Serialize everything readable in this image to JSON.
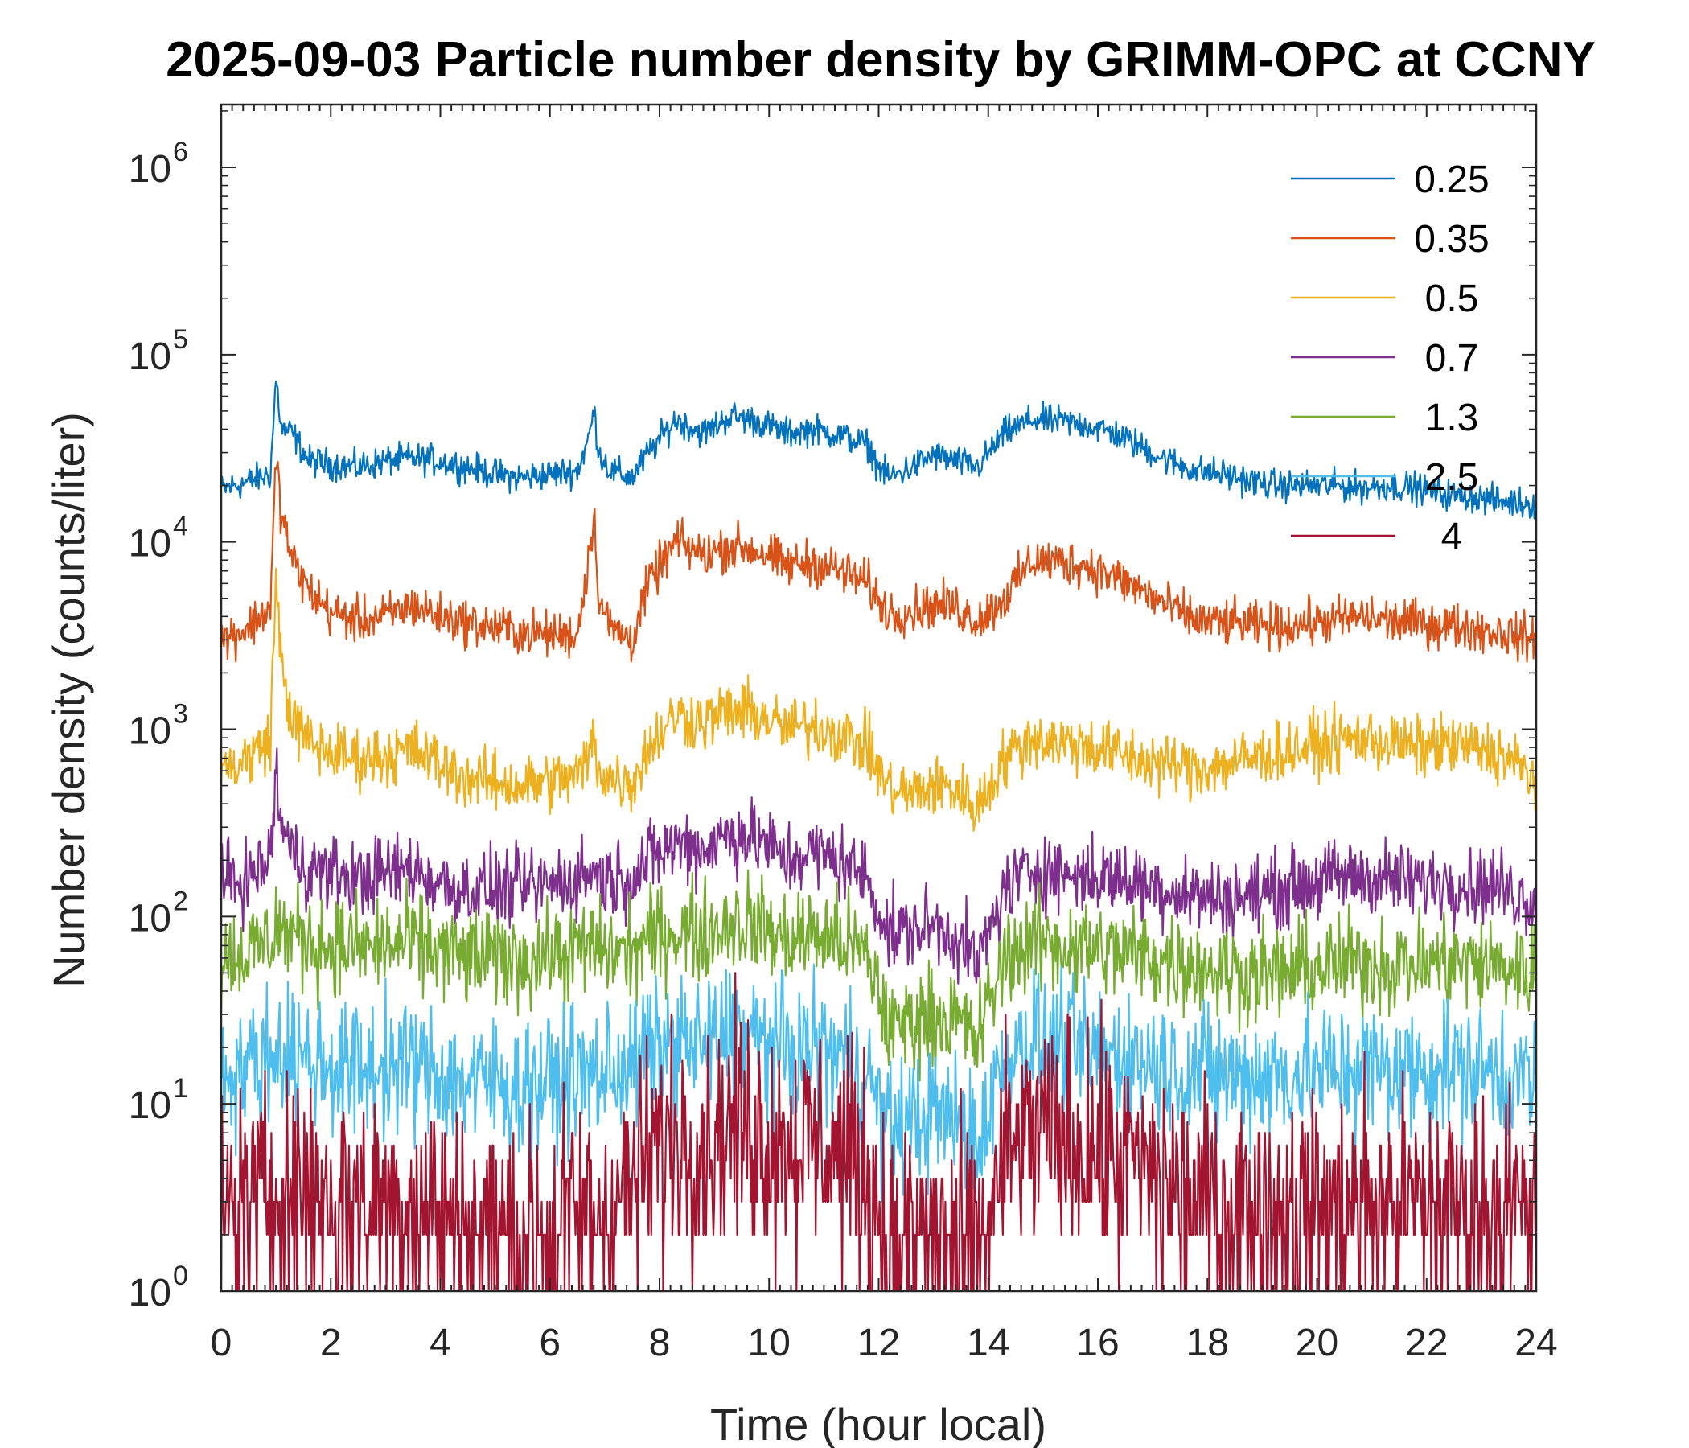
{
  "chart_data": {
    "type": "line",
    "title": "2025-09-03 Particle number density by GRIMM-OPC at CCNY",
    "xlabel": "Time (hour local)",
    "ylabel": "Number density (counts/liter)",
    "xlim": [
      0,
      24
    ],
    "ylim": [
      1,
      2000000
    ],
    "yscale": "log",
    "xticks": [
      0,
      2,
      4,
      6,
      8,
      10,
      12,
      14,
      16,
      18,
      20,
      22,
      24
    ],
    "xtick_labels": [
      "0",
      "2",
      "4",
      "6",
      "8",
      "10",
      "12",
      "14",
      "16",
      "18",
      "20",
      "22",
      "24"
    ],
    "ytick_exponents": [
      "0",
      "1",
      "2",
      "3",
      "4",
      "5",
      "6"
    ],
    "ytick_base": "10",
    "legend_position": "top-right",
    "series": [
      {
        "name": "0.25",
        "color": "#0072BD",
        "x": [
          0,
          0.5,
          0.9,
          1.0,
          1.1,
          1.3,
          1.6,
          2,
          2.5,
          3,
          3.5,
          4,
          4.5,
          5,
          5.5,
          6,
          6.5,
          6.7,
          6.8,
          6.9,
          7.1,
          7.5,
          7.8,
          8.3,
          8.8,
          9.3,
          9.8,
          10.3,
          10.8,
          11.3,
          11.8,
          12.0,
          12.2,
          12.6,
          13.0,
          13.4,
          13.8,
          14.3,
          14.8,
          15.3,
          15.8,
          16.3,
          16.8,
          17.3,
          17.8,
          18.3,
          18.8,
          19.3,
          19.8,
          20.3,
          20.8,
          21.3,
          21.8,
          22.3,
          22.8,
          23.3,
          24
        ],
        "values": [
          19000,
          21000,
          23000,
          75000,
          40000,
          38000,
          27000,
          26000,
          25000,
          27000,
          28000,
          27000,
          25000,
          23000,
          22000,
          23000,
          24000,
          35000,
          50000,
          30000,
          24000,
          22000,
          30000,
          45000,
          38000,
          47000,
          44000,
          38000,
          40000,
          37000,
          33000,
          25000,
          22000,
          25000,
          29000,
          27000,
          25000,
          38000,
          45000,
          44000,
          42000,
          38000,
          32000,
          27000,
          24000,
          23000,
          21000,
          20000,
          20000,
          20000,
          19500,
          20000,
          19500,
          18000,
          17500,
          16500,
          16000
        ]
      },
      {
        "name": "0.35",
        "color": "#D95319",
        "x": [
          0,
          0.5,
          0.9,
          1.0,
          1.1,
          1.3,
          1.6,
          2,
          2.5,
          3,
          3.5,
          4,
          4.5,
          5,
          5.5,
          6,
          6.5,
          6.7,
          6.8,
          6.9,
          7.1,
          7.5,
          7.8,
          8.3,
          8.8,
          9.3,
          9.8,
          10.3,
          10.8,
          11.3,
          11.8,
          12.0,
          12.2,
          12.6,
          13.0,
          13.4,
          13.8,
          14.3,
          14.8,
          15.3,
          15.8,
          16.3,
          16.8,
          17.3,
          17.8,
          18.3,
          18.8,
          19.3,
          19.8,
          20.3,
          20.8,
          21.3,
          21.8,
          22.3,
          22.8,
          23.3,
          24
        ],
        "values": [
          3000,
          3500,
          4500,
          28000,
          14000,
          8000,
          5500,
          4200,
          3800,
          4000,
          4600,
          4000,
          3700,
          3500,
          3300,
          3200,
          3200,
          8000,
          14000,
          5000,
          3500,
          3000,
          6000,
          10000,
          8500,
          9500,
          9000,
          7500,
          7800,
          7000,
          6000,
          4800,
          4200,
          4300,
          4600,
          4500,
          3800,
          5000,
          8000,
          7800,
          7500,
          6500,
          5500,
          4500,
          3800,
          3700,
          3600,
          3500,
          3700,
          3800,
          4000,
          3800,
          3700,
          3600,
          3500,
          3300,
          3000
        ]
      },
      {
        "name": "0.5",
        "color": "#EDB120",
        "x": [
          0,
          0.5,
          0.9,
          1.0,
          1.1,
          1.3,
          1.6,
          2,
          2.5,
          3,
          3.5,
          4,
          4.5,
          5,
          5.5,
          6,
          6.5,
          6.7,
          6.8,
          6.9,
          7.1,
          7.5,
          7.8,
          8.3,
          8.8,
          9.3,
          9.8,
          10.3,
          10.8,
          11.3,
          11.8,
          12.0,
          12.2,
          12.6,
          13.0,
          13.4,
          13.8,
          14.3,
          14.8,
          15.3,
          15.8,
          16.3,
          16.8,
          17.3,
          17.8,
          18.3,
          18.8,
          19.3,
          19.8,
          20.3,
          20.8,
          21.3,
          21.8,
          22.3,
          22.8,
          23.3,
          24
        ],
        "values": [
          600,
          700,
          900,
          6500,
          2200,
          1100,
          850,
          750,
          700,
          720,
          780,
          650,
          550,
          520,
          500,
          530,
          560,
          700,
          900,
          600,
          550,
          520,
          800,
          1200,
          1100,
          1250,
          1200,
          1000,
          1050,
          950,
          800,
          600,
          480,
          450,
          500,
          480,
          380,
          700,
          900,
          850,
          820,
          750,
          680,
          650,
          620,
          650,
          700,
          750,
          800,
          850,
          900,
          850,
          800,
          820,
          800,
          750,
          550
        ]
      },
      {
        "name": "0.7",
        "color": "#7E2F8E",
        "x": [
          0,
          0.5,
          0.9,
          1.0,
          1.1,
          1.3,
          1.6,
          2,
          2.5,
          3,
          3.5,
          4,
          4.5,
          5,
          5.5,
          6,
          6.5,
          6.7,
          6.8,
          6.9,
          7.1,
          7.5,
          7.8,
          8.3,
          8.8,
          9.3,
          9.8,
          10.3,
          10.8,
          11.3,
          11.8,
          12.0,
          12.2,
          12.6,
          13.0,
          13.4,
          13.8,
          14.3,
          14.8,
          15.3,
          15.8,
          16.3,
          16.8,
          17.3,
          17.8,
          18.3,
          18.8,
          19.3,
          19.8,
          20.3,
          20.8,
          21.3,
          21.8,
          22.3,
          22.8,
          23.3,
          24
        ],
        "values": [
          150,
          160,
          200,
          600,
          300,
          220,
          180,
          170,
          160,
          170,
          180,
          150,
          140,
          140,
          140,
          150,
          160,
          170,
          180,
          160,
          160,
          160,
          200,
          250,
          230,
          280,
          260,
          200,
          220,
          200,
          160,
          110,
          80,
          85,
          90,
          80,
          55,
          140,
          180,
          170,
          165,
          160,
          150,
          140,
          130,
          125,
          130,
          140,
          150,
          160,
          165,
          160,
          150,
          155,
          150,
          145,
          120
        ]
      },
      {
        "name": "1.3",
        "color": "#77AC30",
        "x": [
          0,
          0.5,
          0.9,
          1.0,
          1.1,
          1.3,
          1.6,
          2,
          2.5,
          3,
          3.5,
          4,
          4.5,
          5,
          5.5,
          6,
          6.5,
          6.7,
          6.8,
          6.9,
          7.1,
          7.5,
          7.8,
          8.3,
          8.8,
          9.3,
          9.8,
          10.3,
          10.8,
          11.3,
          11.8,
          12.0,
          12.2,
          12.6,
          13.0,
          13.4,
          13.8,
          14.3,
          14.8,
          15.3,
          15.8,
          16.3,
          16.8,
          17.3,
          17.8,
          18.3,
          18.8,
          19.3,
          19.8,
          20.3,
          20.8,
          21.3,
          21.8,
          22.3,
          22.8,
          23.3,
          24
        ],
        "values": [
          60,
          65,
          75,
          90,
          85,
          80,
          75,
          70,
          68,
          70,
          72,
          65,
          60,
          60,
          60,
          62,
          65,
          68,
          70,
          66,
          65,
          65,
          75,
          85,
          80,
          95,
          90,
          75,
          80,
          75,
          60,
          40,
          25,
          28,
          30,
          28,
          22,
          60,
          75,
          70,
          68,
          65,
          62,
          58,
          55,
          52,
          50,
          50,
          52,
          55,
          58,
          56,
          55,
          58,
          56,
          55,
          50
        ]
      },
      {
        "name": "2.5",
        "color": "#4DBEEE",
        "x": [
          0,
          0.5,
          0.9,
          1.0,
          1.1,
          1.3,
          1.6,
          2,
          2.5,
          3,
          3.5,
          4,
          4.5,
          5,
          5.5,
          6,
          6.5,
          6.7,
          6.8,
          6.9,
          7.1,
          7.5,
          7.8,
          8.3,
          8.8,
          9.3,
          9.8,
          10.3,
          10.8,
          11.3,
          11.8,
          12.0,
          12.2,
          12.6,
          13.0,
          13.4,
          13.8,
          14.3,
          14.8,
          15.3,
          15.8,
          16.3,
          16.8,
          17.3,
          17.8,
          18.3,
          18.8,
          19.3,
          19.8,
          20.3,
          20.8,
          21.3,
          21.8,
          22.3,
          22.8,
          23.3,
          24
        ],
        "values": [
          15,
          16,
          18,
          20,
          19,
          18,
          17,
          16,
          15,
          16,
          16,
          14,
          13,
          13,
          12,
          13,
          14,
          14,
          15,
          14,
          15,
          16,
          18,
          22,
          20,
          24,
          22,
          18,
          20,
          18,
          14,
          10,
          7,
          8,
          9,
          8,
          6,
          18,
          22,
          20,
          19,
          18,
          17,
          16,
          15,
          14,
          14,
          14,
          15,
          15,
          16,
          15,
          15,
          16,
          15,
          15,
          13
        ]
      },
      {
        "name": "4",
        "color": "#A2142F",
        "x": [
          0,
          0.5,
          0.9,
          1.0,
          1.1,
          1.3,
          1.6,
          2,
          2.5,
          3,
          3.5,
          4,
          4.5,
          5,
          5.5,
          6,
          6.5,
          6.7,
          6.8,
          6.9,
          7.1,
          7.5,
          7.8,
          8.3,
          8.8,
          9.3,
          9.8,
          10.3,
          10.8,
          11.3,
          11.8,
          12.0,
          12.2,
          12.6,
          13.0,
          13.4,
          13.8,
          14.3,
          14.8,
          15.3,
          15.8,
          16.3,
          16.8,
          17.3,
          17.8,
          18.3,
          18.8,
          19.3,
          19.8,
          20.3,
          20.8,
          21.3,
          21.8,
          22.3,
          22.8,
          23.3,
          24
        ],
        "values": [
          2.5,
          3,
          3.5,
          4,
          4,
          3.5,
          3.5,
          3,
          3,
          3,
          3,
          2.5,
          2.2,
          2.2,
          2,
          2.2,
          2.5,
          2.5,
          2.5,
          2.5,
          3,
          3.5,
          5,
          7,
          6,
          8,
          7,
          6,
          6.5,
          5.5,
          4,
          2.5,
          1.6,
          1.8,
          2,
          1.8,
          1.5,
          5,
          7,
          6.5,
          6,
          5,
          4.5,
          3.5,
          3,
          2.8,
          2.6,
          2.6,
          2.8,
          2.8,
          3,
          2.8,
          2.8,
          3,
          2.8,
          2.8,
          2.5
        ]
      }
    ]
  }
}
